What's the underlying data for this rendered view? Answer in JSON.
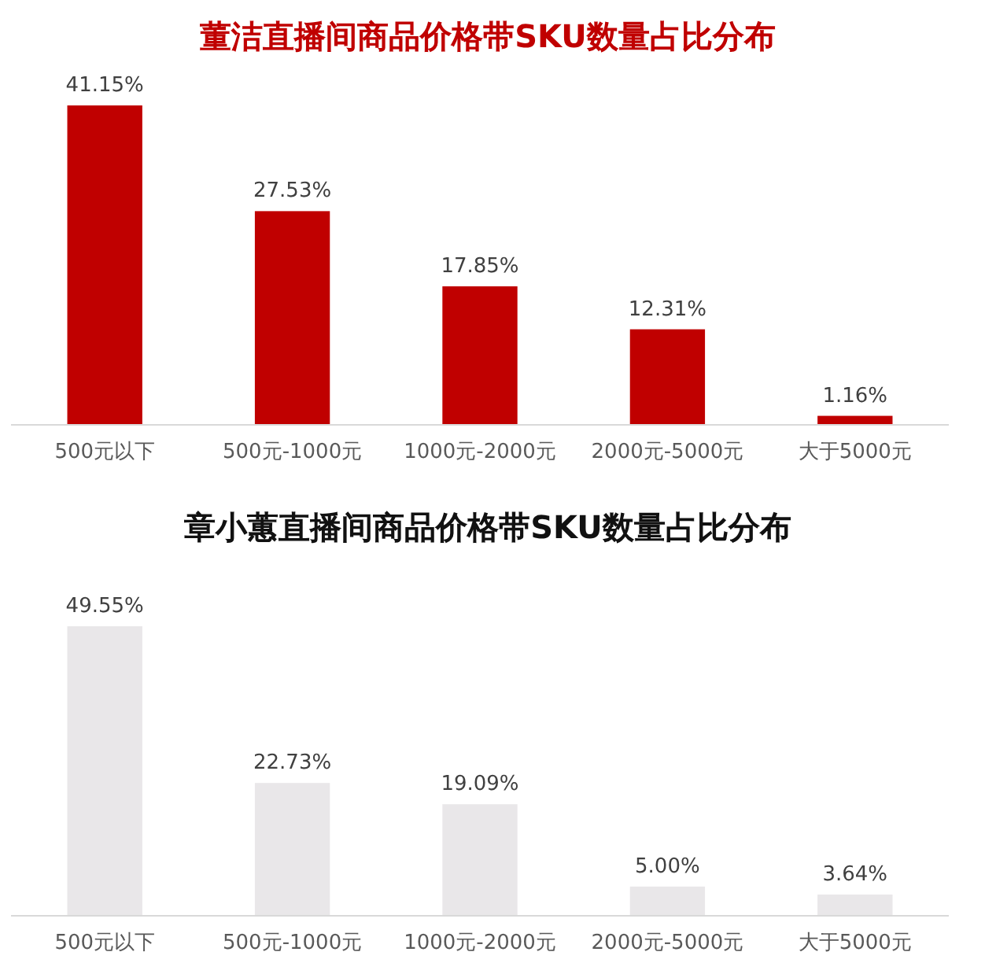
{
  "chart_data": [
    {
      "type": "bar",
      "title": "董洁直播间商品价格带SKU数量占比分布",
      "categories": [
        "500元以下",
        "500元-1000元",
        "1000元-2000元",
        "2000元-5000元",
        "大于5000元"
      ],
      "values": [
        41.15,
        27.53,
        17.85,
        12.31,
        1.16
      ],
      "value_labels": [
        "41.15%",
        "27.53%",
        "17.85%",
        "12.31%",
        "1.16%"
      ],
      "color": "#c00000"
    },
    {
      "type": "bar",
      "title": "章小蕙直播间商品价格带SKU数量占比分布",
      "categories": [
        "500元以下",
        "500元-1000元",
        "1000元-2000元",
        "2000元-5000元",
        "大于5000元"
      ],
      "values": [
        49.55,
        22.73,
        19.09,
        5.0,
        3.64
      ],
      "value_labels": [
        "49.55%",
        "22.73%",
        "19.09%",
        "5.00%",
        "3.64%"
      ],
      "color": "#e9e7e9"
    }
  ]
}
